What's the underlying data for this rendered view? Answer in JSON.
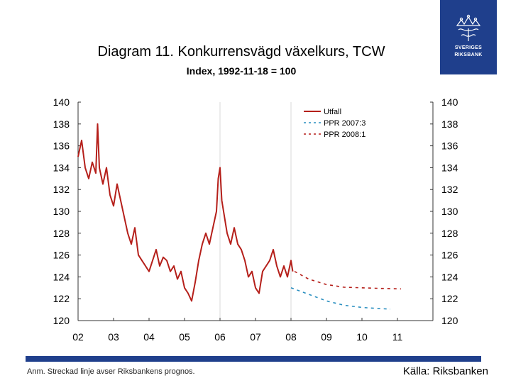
{
  "header": {
    "title": "Diagram 11. Konkurrensvägd växelkurs, TCW",
    "subtitle": "Index, 1992-11-18 = 100"
  },
  "logo": {
    "line1": "SVERIGES",
    "line2": "RIKSBANK"
  },
  "footer": {
    "note": "Anm. Streckad linje avser Riksbankens prognos.",
    "source": "Källa: Riksbanken"
  },
  "colors": {
    "actual": "#b51f1a",
    "ppr2007": "#2a8fc0",
    "ppr2008": "#b51f1a",
    "brand": "#1f3f8c",
    "grid": "#d8d8d8"
  },
  "chart_data": {
    "type": "line",
    "title": "Diagram 11. Konkurrensvägd växelkurs, TCW",
    "subtitle": "Index, 1992-11-18 = 100",
    "xlabel": "",
    "ylabel": "",
    "x_ticks": [
      "02",
      "03",
      "04",
      "05",
      "06",
      "07",
      "08",
      "09",
      "10",
      "11"
    ],
    "y_ticks": [
      120,
      122,
      124,
      126,
      128,
      130,
      132,
      134,
      136,
      138,
      140
    ],
    "ylim": [
      120,
      140
    ],
    "xlim": [
      2002,
      2012
    ],
    "grid": "vertical-lines",
    "legend_position": "top-right",
    "series": [
      {
        "name": "Utfall",
        "style": "solid",
        "points": [
          [
            2002.0,
            135.0
          ],
          [
            2002.1,
            136.5
          ],
          [
            2002.2,
            134.0
          ],
          [
            2002.3,
            133.0
          ],
          [
            2002.4,
            134.5
          ],
          [
            2002.5,
            133.5
          ],
          [
            2002.55,
            138.0
          ],
          [
            2002.6,
            134.0
          ],
          [
            2002.7,
            132.5
          ],
          [
            2002.8,
            134.0
          ],
          [
            2002.9,
            131.5
          ],
          [
            2003.0,
            130.5
          ],
          [
            2003.1,
            132.5
          ],
          [
            2003.2,
            131.0
          ],
          [
            2003.3,
            129.5
          ],
          [
            2003.4,
            128.0
          ],
          [
            2003.5,
            127.0
          ],
          [
            2003.6,
            128.5
          ],
          [
            2003.7,
            126.0
          ],
          [
            2003.8,
            125.5
          ],
          [
            2003.9,
            125.0
          ],
          [
            2004.0,
            124.5
          ],
          [
            2004.1,
            125.5
          ],
          [
            2004.2,
            126.5
          ],
          [
            2004.3,
            125.0
          ],
          [
            2004.4,
            125.8
          ],
          [
            2004.5,
            125.5
          ],
          [
            2004.6,
            124.5
          ],
          [
            2004.7,
            125.0
          ],
          [
            2004.8,
            123.8
          ],
          [
            2004.9,
            124.5
          ],
          [
            2005.0,
            123.0
          ],
          [
            2005.1,
            122.5
          ],
          [
            2005.2,
            121.8
          ],
          [
            2005.3,
            123.5
          ],
          [
            2005.4,
            125.5
          ],
          [
            2005.5,
            127.0
          ],
          [
            2005.6,
            128.0
          ],
          [
            2005.7,
            127.0
          ],
          [
            2005.8,
            128.5
          ],
          [
            2005.9,
            130.0
          ],
          [
            2005.95,
            133.0
          ],
          [
            2006.0,
            134.0
          ],
          [
            2006.05,
            131.0
          ],
          [
            2006.1,
            130.0
          ],
          [
            2006.2,
            128.0
          ],
          [
            2006.3,
            127.0
          ],
          [
            2006.4,
            128.5
          ],
          [
            2006.5,
            127.0
          ],
          [
            2006.6,
            126.5
          ],
          [
            2006.7,
            125.5
          ],
          [
            2006.8,
            124.0
          ],
          [
            2006.9,
            124.5
          ],
          [
            2007.0,
            123.0
          ],
          [
            2007.1,
            122.5
          ],
          [
            2007.2,
            124.5
          ],
          [
            2007.3,
            125.0
          ],
          [
            2007.4,
            125.5
          ],
          [
            2007.5,
            126.5
          ],
          [
            2007.6,
            125.0
          ],
          [
            2007.7,
            124.0
          ],
          [
            2007.8,
            125.0
          ],
          [
            2007.9,
            124.0
          ],
          [
            2008.0,
            125.5
          ],
          [
            2008.05,
            124.5
          ]
        ]
      },
      {
        "name": "PPR 2007:3",
        "style": "dashed",
        "points": [
          [
            2008.0,
            123.0
          ],
          [
            2008.5,
            122.4
          ],
          [
            2009.0,
            121.8
          ],
          [
            2009.5,
            121.4
          ],
          [
            2010.0,
            121.2
          ],
          [
            2010.5,
            121.1
          ],
          [
            2010.8,
            121.05
          ]
        ]
      },
      {
        "name": "PPR 2008:1",
        "style": "dashed",
        "points": [
          [
            2008.1,
            124.5
          ],
          [
            2008.5,
            123.8
          ],
          [
            2009.0,
            123.3
          ],
          [
            2009.5,
            123.05
          ],
          [
            2010.0,
            123.0
          ],
          [
            2010.5,
            122.95
          ],
          [
            2011.1,
            122.9
          ]
        ]
      }
    ]
  }
}
